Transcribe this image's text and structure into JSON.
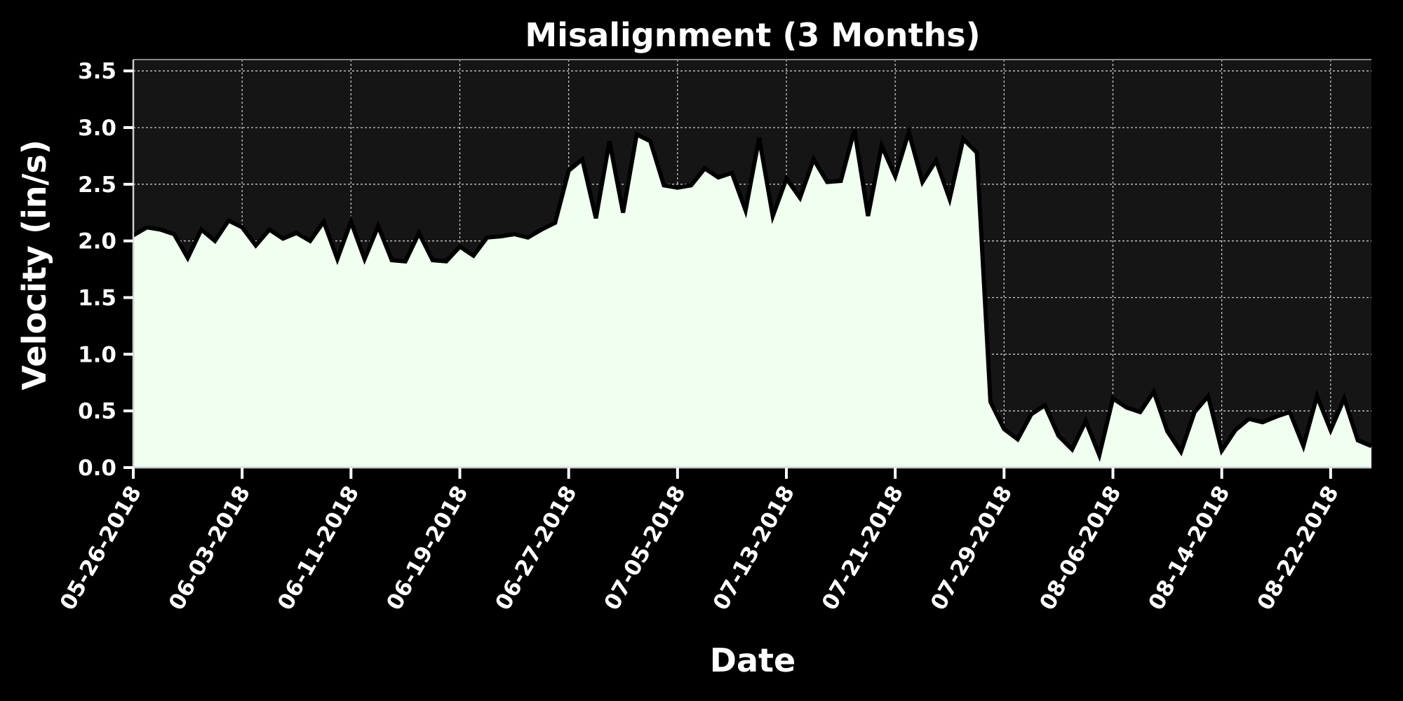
{
  "chart_data": {
    "type": "area",
    "title": "Misalignment (3 Months)",
    "xlabel": "Date",
    "ylabel": "Velocity (in/s)",
    "ylim": [
      0,
      3.6
    ],
    "yticks": [
      0.0,
      0.5,
      1.0,
      1.5,
      2.0,
      2.5,
      3.0,
      3.5
    ],
    "ytick_labels": [
      "0.0",
      "0.5",
      "1.0",
      "1.5",
      "2.0",
      "2.5",
      "3.0",
      "3.5"
    ],
    "xlim": [
      "2018-05-26",
      "2018-08-25"
    ],
    "xticks": [
      "2018-05-26",
      "2018-06-03",
      "2018-06-11",
      "2018-06-19",
      "2018-06-27",
      "2018-07-05",
      "2018-07-13",
      "2018-07-21",
      "2018-07-29",
      "2018-08-06",
      "2018-08-14",
      "2018-08-22"
    ],
    "xtick_labels": [
      "05-26-2018",
      "06-03-2018",
      "06-11-2018",
      "06-19-2018",
      "06-27-2018",
      "07-05-2018",
      "07-13-2018",
      "07-21-2018",
      "07-29-2018",
      "08-06-2018",
      "08-14-2018",
      "08-22-2018"
    ],
    "grid": true,
    "colors": {
      "background": "#000000",
      "plot_background": "#151515",
      "fill": "#f0fff0",
      "line": "#000000",
      "grid": "#c8c8c8",
      "text": "#ffffff"
    },
    "x": [
      "2018-05-26",
      "2018-05-27",
      "2018-05-28",
      "2018-05-29",
      "2018-05-30",
      "2018-05-31",
      "2018-06-01",
      "2018-06-02",
      "2018-06-03",
      "2018-06-04",
      "2018-06-05",
      "2018-06-06",
      "2018-06-07",
      "2018-06-08",
      "2018-06-09",
      "2018-06-10",
      "2018-06-11",
      "2018-06-12",
      "2018-06-13",
      "2018-06-14",
      "2018-06-15",
      "2018-06-16",
      "2018-06-17",
      "2018-06-18",
      "2018-06-19",
      "2018-06-20",
      "2018-06-21",
      "2018-06-22",
      "2018-06-23",
      "2018-06-24",
      "2018-06-25",
      "2018-06-26",
      "2018-06-27",
      "2018-06-28",
      "2018-06-29",
      "2018-06-30",
      "2018-07-01",
      "2018-07-02",
      "2018-07-03",
      "2018-07-04",
      "2018-07-05",
      "2018-07-06",
      "2018-07-07",
      "2018-07-08",
      "2018-07-09",
      "2018-07-10",
      "2018-07-11",
      "2018-07-12",
      "2018-07-13",
      "2018-07-14",
      "2018-07-15",
      "2018-07-16",
      "2018-07-17",
      "2018-07-18",
      "2018-07-19",
      "2018-07-20",
      "2018-07-21",
      "2018-07-22",
      "2018-07-23",
      "2018-07-24",
      "2018-07-25",
      "2018-07-26",
      "2018-07-27",
      "2018-07-28",
      "2018-07-29",
      "2018-07-30",
      "2018-07-31",
      "2018-08-01",
      "2018-08-02",
      "2018-08-03",
      "2018-08-04",
      "2018-08-05",
      "2018-08-06",
      "2018-08-07",
      "2018-08-08",
      "2018-08-09",
      "2018-08-10",
      "2018-08-11",
      "2018-08-12",
      "2018-08-13",
      "2018-08-14",
      "2018-08-15",
      "2018-08-16",
      "2018-08-17",
      "2018-08-18",
      "2018-08-19",
      "2018-08-20",
      "2018-08-21",
      "2018-08-22",
      "2018-08-23",
      "2018-08-24",
      "2018-08-25"
    ],
    "series": [
      {
        "values": [
          2.05,
          2.12,
          2.1,
          2.06,
          1.85,
          2.1,
          2.0,
          2.18,
          2.12,
          1.96,
          2.1,
          2.02,
          2.07,
          2.0,
          2.17,
          1.84,
          2.17,
          1.84,
          2.13,
          1.83,
          1.82,
          2.07,
          1.83,
          1.82,
          1.95,
          1.87,
          2.03,
          2.04,
          2.06,
          2.03,
          2.1,
          2.16,
          2.62,
          2.72,
          2.2,
          2.88,
          2.25,
          2.94,
          2.88,
          2.49,
          2.47,
          2.49,
          2.64,
          2.56,
          2.6,
          2.27,
          2.91,
          2.22,
          2.55,
          2.38,
          2.72,
          2.52,
          2.53,
          2.98,
          2.22,
          2.84,
          2.57,
          2.96,
          2.52,
          2.71,
          2.37,
          2.9,
          2.78,
          0.58,
          0.34,
          0.25,
          0.47,
          0.55,
          0.28,
          0.16,
          0.41,
          0.11,
          0.61,
          0.53,
          0.49,
          0.67,
          0.32,
          0.14,
          0.49,
          0.63,
          0.15,
          0.33,
          0.43,
          0.4,
          0.45,
          0.49,
          0.19,
          0.63,
          0.33,
          0.61,
          0.24,
          0.19
        ]
      }
    ]
  }
}
